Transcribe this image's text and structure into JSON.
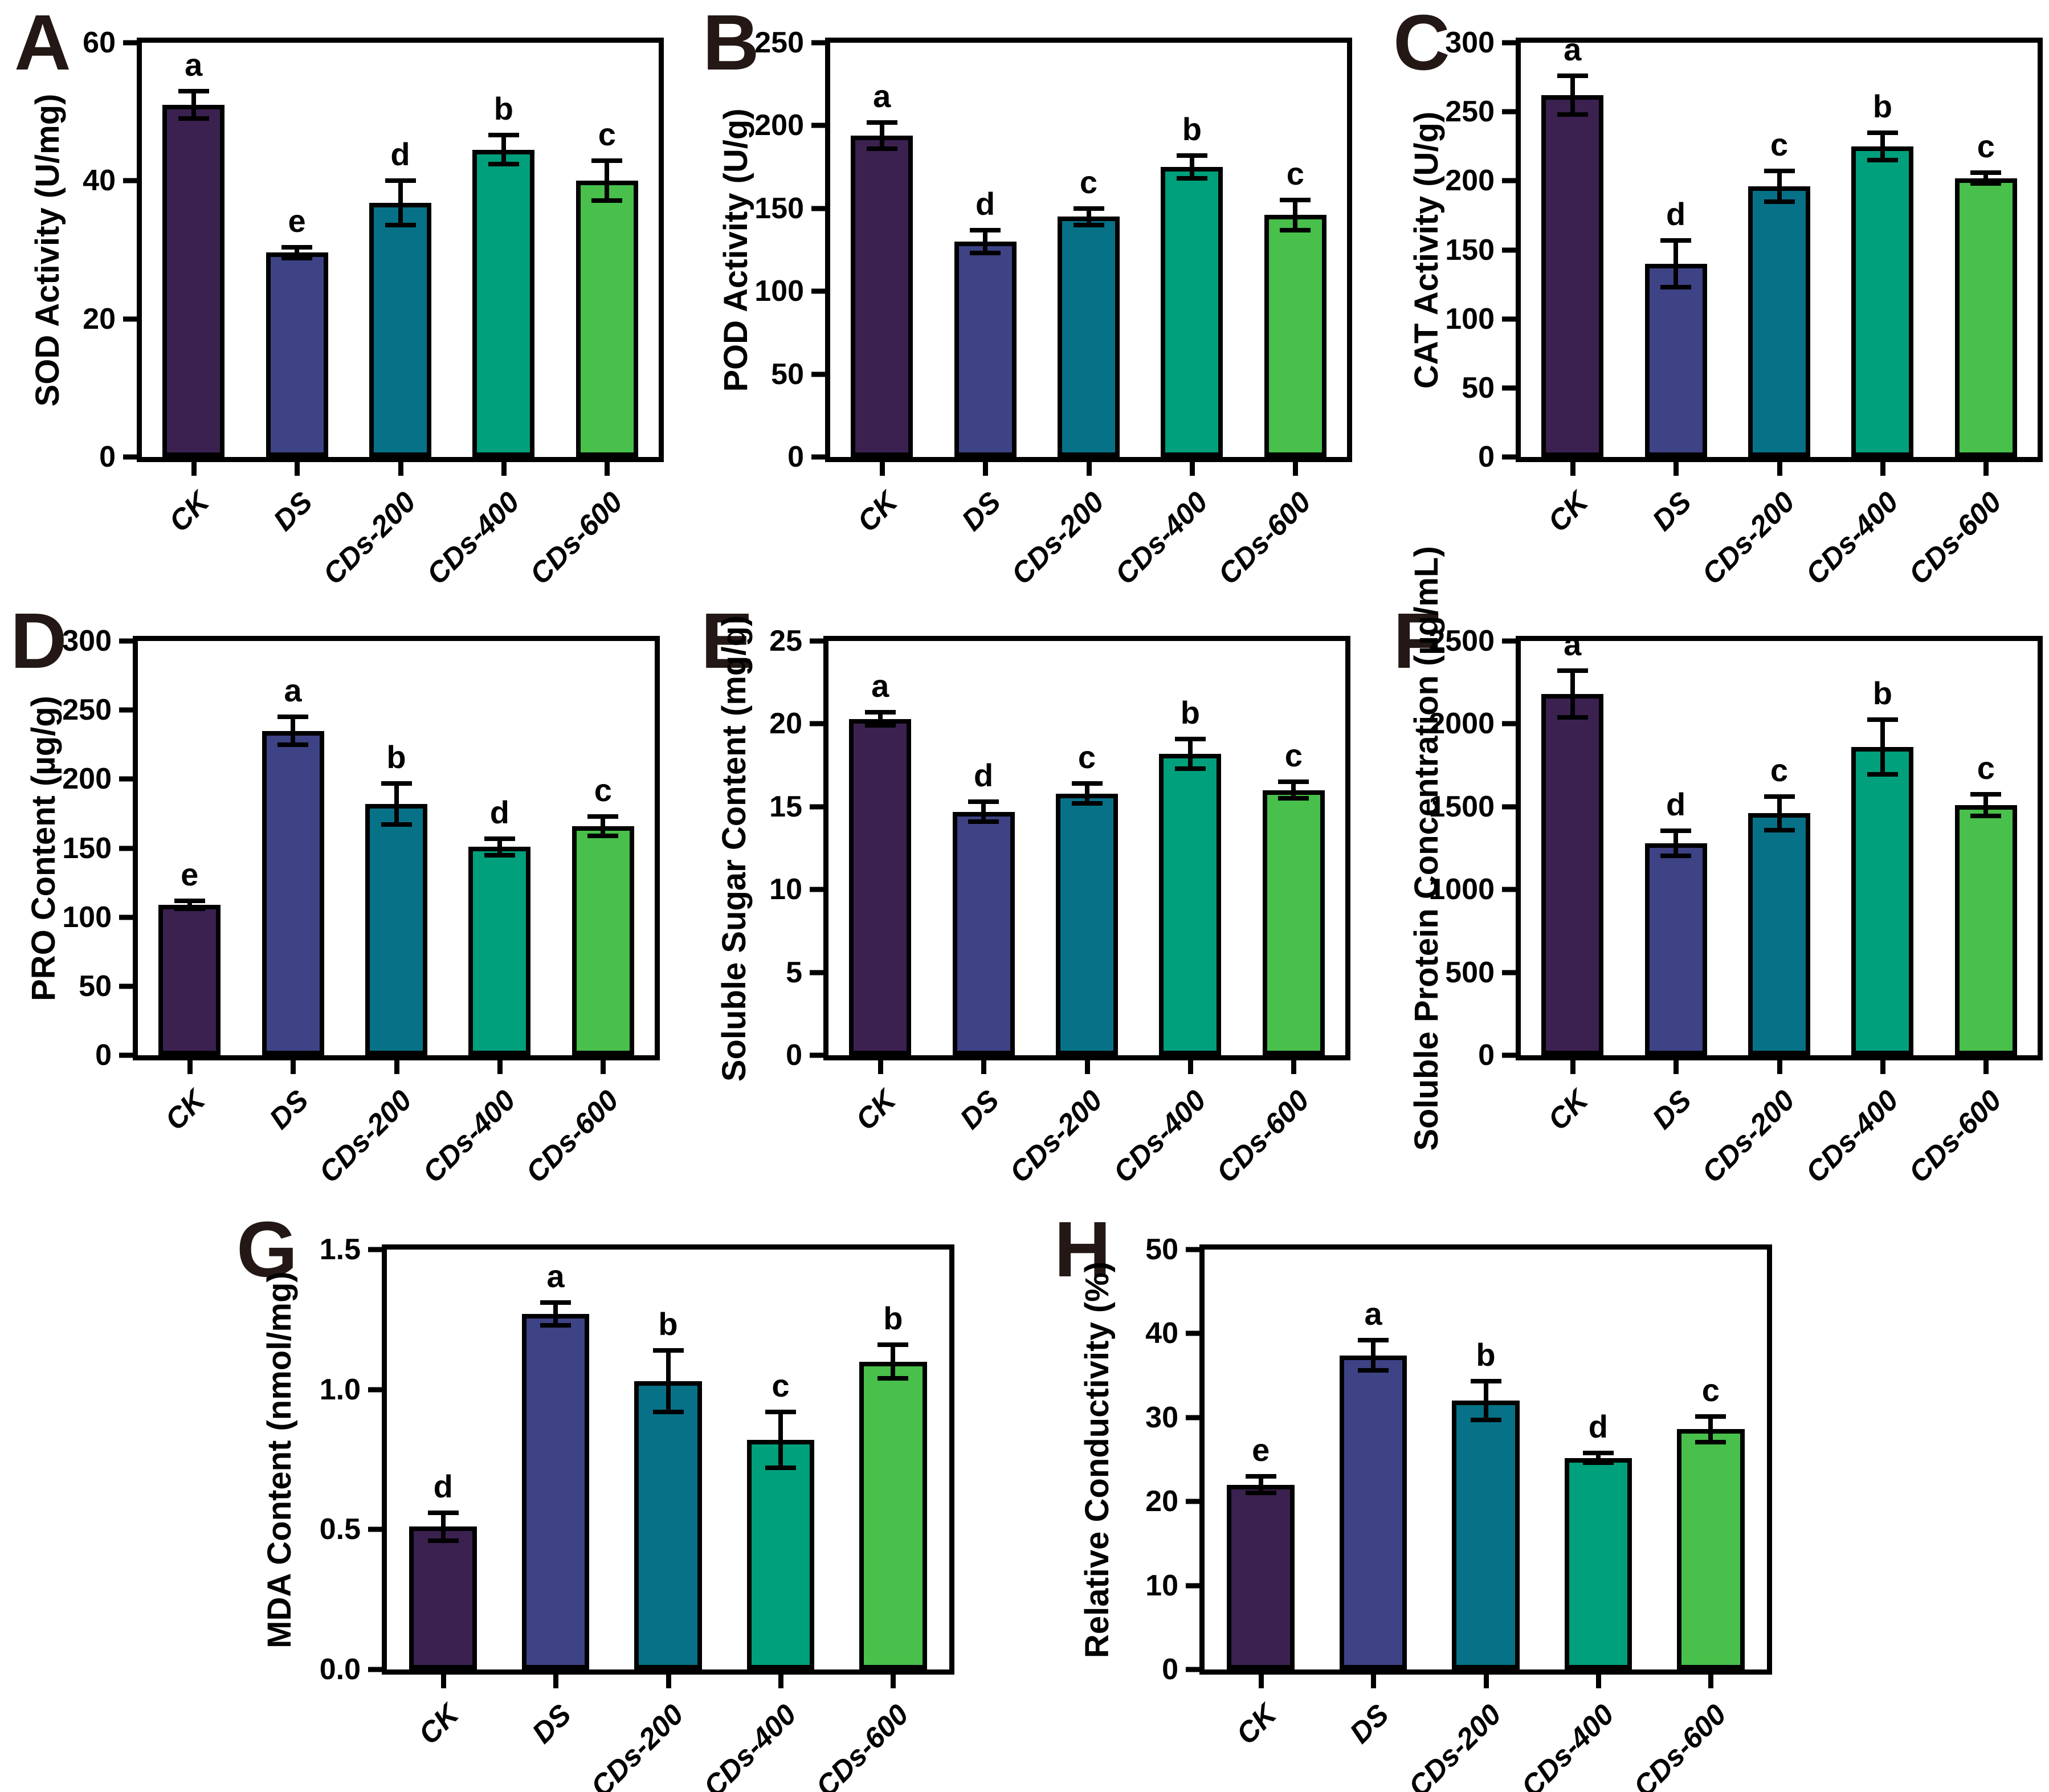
{
  "figure": {
    "background": "#ffffff"
  },
  "palette": {
    "bar_colors": [
      "#3b2150",
      "#3e4386",
      "#077287",
      "#00a07c",
      "#48c04b"
    ],
    "axis_color": "#000000",
    "panel_letter_color": "#231815"
  },
  "categories": [
    "CK",
    "DS",
    "CDs-200",
    "CDs-400",
    "CDs-600"
  ],
  "chart_data": [
    {
      "id": "A",
      "panel": "A",
      "type": "bar",
      "ylabel": "SOD Activity (U/mg)",
      "ylim": [
        0,
        60
      ],
      "ystep": 20,
      "ydecimals": 0,
      "grid": false,
      "legend": false,
      "categories": [
        "CK",
        "DS",
        "CDs-200",
        "CDs-400",
        "CDs-600"
      ],
      "values": [
        51.0,
        29.6,
        36.8,
        44.5,
        40.0
      ],
      "errors": [
        2.0,
        0.8,
        3.2,
        2.1,
        2.9
      ],
      "sig_letters": [
        "a",
        "e",
        "d",
        "b",
        "c"
      ]
    },
    {
      "id": "B",
      "panel": "B",
      "type": "bar",
      "ylabel": "POD Activity (U/g)",
      "ylim": [
        0,
        250
      ],
      "ystep": 50,
      "ydecimals": 0,
      "grid": false,
      "legend": false,
      "categories": [
        "CK",
        "DS",
        "CDs-200",
        "CDs-400",
        "CDs-600"
      ],
      "values": [
        194,
        130,
        145,
        175,
        146
      ],
      "errors": [
        8,
        7,
        5,
        7,
        9
      ],
      "sig_letters": [
        "a",
        "d",
        "c",
        "b",
        "c"
      ]
    },
    {
      "id": "C",
      "panel": "C",
      "type": "bar",
      "ylabel": "CAT Activity (U/g)",
      "ylim": [
        0,
        300
      ],
      "ystep": 50,
      "ydecimals": 0,
      "grid": false,
      "legend": false,
      "categories": [
        "CK",
        "DS",
        "CDs-200",
        "CDs-400",
        "CDs-600"
      ],
      "values": [
        262,
        140,
        196,
        225,
        202
      ],
      "errors": [
        14,
        17,
        11,
        10,
        4
      ],
      "sig_letters": [
        "a",
        "d",
        "c",
        "b",
        "c"
      ]
    },
    {
      "id": "D",
      "panel": "D",
      "type": "bar",
      "ylabel": "PRO Content (µg/g)",
      "ylim": [
        0,
        300
      ],
      "ystep": 50,
      "ydecimals": 0,
      "grid": false,
      "legend": false,
      "categories": [
        "CK",
        "DS",
        "CDs-200",
        "CDs-400",
        "CDs-600"
      ],
      "values": [
        109,
        235,
        182,
        151,
        166
      ],
      "errors": [
        3,
        10,
        15,
        6,
        7
      ],
      "sig_letters": [
        "e",
        "a",
        "b",
        "d",
        "c"
      ]
    },
    {
      "id": "E",
      "panel": "E",
      "type": "bar",
      "ylabel": "Soluble Sugar Content (mg/g)",
      "ylim": [
        0,
        25
      ],
      "ystep": 5,
      "ydecimals": 0,
      "grid": false,
      "legend": false,
      "categories": [
        "CK",
        "DS",
        "CDs-200",
        "CDs-400",
        "CDs-600"
      ],
      "values": [
        20.3,
        14.7,
        15.8,
        18.2,
        16.0
      ],
      "errors": [
        0.4,
        0.6,
        0.6,
        0.9,
        0.5
      ],
      "sig_letters": [
        "a",
        "d",
        "c",
        "b",
        "c"
      ]
    },
    {
      "id": "F",
      "panel": "F",
      "type": "bar",
      "ylabel": "Soluble Protein Concentration (µg/mL)",
      "ylim": [
        0,
        2500
      ],
      "ystep": 500,
      "ydecimals": 0,
      "grid": false,
      "legend": false,
      "categories": [
        "CK",
        "DS",
        "CDs-200",
        "CDs-400",
        "CDs-600"
      ],
      "values": [
        2180,
        1280,
        1460,
        1860,
        1510
      ],
      "errors": [
        140,
        75,
        100,
        165,
        65
      ],
      "sig_letters": [
        "a",
        "d",
        "c",
        "b",
        "c"
      ]
    },
    {
      "id": "G",
      "panel": "G",
      "type": "bar",
      "ylabel": "MDA Content (nmol/mg)",
      "ylim": [
        0,
        1.5
      ],
      "ystep": 0.5,
      "ydecimals": 1,
      "grid": false,
      "legend": false,
      "categories": [
        "CK",
        "DS",
        "CDs-200",
        "CDs-400",
        "CDs-600"
      ],
      "values": [
        0.51,
        1.27,
        1.03,
        0.82,
        1.1
      ],
      "errors": [
        0.05,
        0.04,
        0.11,
        0.1,
        0.06
      ],
      "sig_letters": [
        "d",
        "a",
        "b",
        "c",
        "b"
      ]
    },
    {
      "id": "H",
      "panel": "H",
      "type": "bar",
      "ylabel": "Relative Conductivity (%)",
      "ylim": [
        0,
        50
      ],
      "ystep": 10,
      "ydecimals": 0,
      "grid": false,
      "legend": false,
      "categories": [
        "CK",
        "DS",
        "CDs-200",
        "CDs-400",
        "CDs-600"
      ],
      "values": [
        22.0,
        37.4,
        32.0,
        25.2,
        28.6
      ],
      "errors": [
        1.0,
        1.8,
        2.3,
        0.6,
        1.5
      ],
      "sig_letters": [
        "e",
        "a",
        "b",
        "d",
        "c"
      ]
    }
  ]
}
